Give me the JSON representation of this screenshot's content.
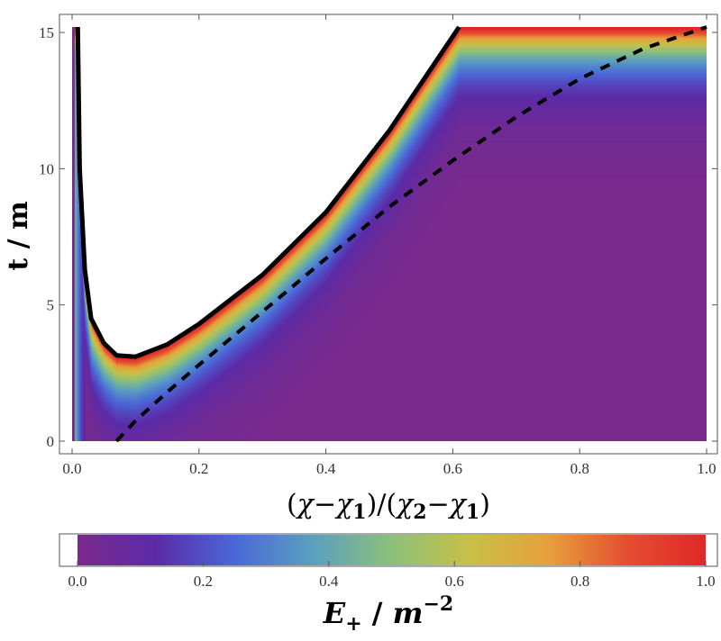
{
  "chart_data": {
    "type": "heatmap",
    "title": "",
    "xlabel": {
      "text": "(χ−χ₁)/(χ₂−χ₁)",
      "parts": [
        "(",
        "χ",
        "−",
        "χ",
        "1",
        ")/(",
        "χ",
        "2",
        "−",
        "χ",
        "1",
        ")"
      ]
    },
    "ylabel": "t / m",
    "xlim": [
      0.0,
      1.0
    ],
    "ylim": [
      0,
      15.2
    ],
    "x_ticks": [
      "0.0",
      "0.2",
      "0.4",
      "0.6",
      "0.8",
      "1.0"
    ],
    "x_tick_values": [
      0.0,
      0.2,
      0.4,
      0.6,
      0.8,
      1.0
    ],
    "y_ticks": [
      "0",
      "5",
      "10",
      "15"
    ],
    "y_tick_values": [
      0,
      5,
      10,
      15
    ],
    "solid_boundary_curve": {
      "style": "solid black",
      "x": [
        0.009,
        0.012,
        0.02,
        0.03,
        0.05,
        0.07,
        0.1,
        0.15,
        0.2,
        0.3,
        0.4,
        0.5,
        0.61
      ],
      "y": [
        15.2,
        10.0,
        6.3,
        4.5,
        3.6,
        3.15,
        3.1,
        3.55,
        4.3,
        6.1,
        8.4,
        11.4,
        15.2
      ]
    },
    "dashed_curve": {
      "style": "dashed black",
      "x": [
        0.07,
        0.1,
        0.15,
        0.2,
        0.3,
        0.4,
        0.5,
        0.6,
        0.7,
        0.8,
        0.9,
        1.0
      ],
      "y": [
        0.0,
        0.75,
        1.8,
        2.8,
        4.75,
        6.7,
        8.6,
        10.3,
        11.9,
        13.3,
        14.4,
        15.2
      ]
    },
    "colorbar": {
      "label": {
        "text": "E₊ / m⁻²",
        "parts": [
          "E",
          "+",
          " / ",
          "m",
          "−2"
        ]
      },
      "ticks": [
        "0.0",
        "0.2",
        "0.4",
        "0.6",
        "0.8",
        "1.0"
      ],
      "tick_values": [
        0.0,
        0.2,
        0.4,
        0.6,
        0.8,
        1.0
      ],
      "range": [
        0.0,
        1.0
      ],
      "colors": [
        "#7a2a8c",
        "#5c2aa8",
        "#4a68d8",
        "#5aa0c0",
        "#8cc07a",
        "#c8c048",
        "#e6a03c",
        "#e44e30",
        "#e02828"
      ]
    },
    "grid": false,
    "legend": "none"
  }
}
